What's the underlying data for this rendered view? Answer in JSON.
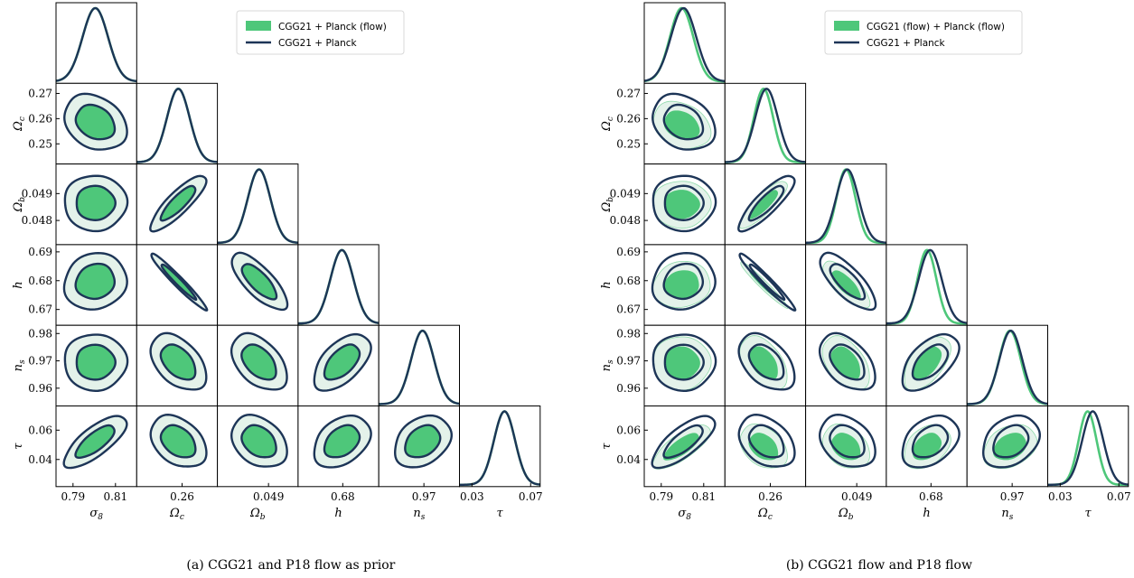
{
  "colors": {
    "flow": "#4ec77a",
    "flow_light": "#e4f2ea",
    "planck": "#1d3557"
  },
  "params": [
    {
      "label": "σ8",
      "ticks": [
        0.79,
        0.81
      ],
      "tick_labels": [
        "0.79",
        "0.81"
      ],
      "range": [
        0.782,
        0.82
      ],
      "mean": 0.8005,
      "sigma": 0.006
    },
    {
      "label": "Ωc",
      "ticks": [
        0.25,
        0.26,
        0.27
      ],
      "tick_labels": [
        "0.25",
        "0.26",
        "0.27"
      ],
      "xticks": [
        0.26
      ],
      "xtick_labels": [
        "0.26"
      ],
      "range": [
        0.242,
        0.274
      ],
      "mean": 0.2585,
      "sigma": 0.0045
    },
    {
      "label": "Ωb",
      "ticks": [
        0.048,
        0.049
      ],
      "tick_labels": [
        "0.048",
        "0.049"
      ],
      "xticks": [
        0.049
      ],
      "xtick_labels": [
        "0.049"
      ],
      "range": [
        0.0471,
        0.0501
      ],
      "mean": 0.04865,
      "sigma": 0.00042
    },
    {
      "label": "h",
      "ticks": [
        0.67,
        0.68,
        0.69
      ],
      "tick_labels": [
        "0.67",
        "0.68",
        "0.69"
      ],
      "xticks": [
        0.68
      ],
      "xtick_labels": [
        "0.68"
      ],
      "range": [
        0.6645,
        0.6925
      ],
      "mean": 0.6797,
      "sigma": 0.004
    },
    {
      "label": "ns",
      "ticks": [
        0.96,
        0.97,
        0.98
      ],
      "tick_labels": [
        "0.96",
        "0.97",
        "0.98"
      ],
      "xticks": [
        0.97
      ],
      "xtick_labels": [
        "0.97"
      ],
      "range": [
        0.9535,
        0.983
      ],
      "mean": 0.9695,
      "sigma": 0.0042
    },
    {
      "label": "τ",
      "ticks": [
        0.04,
        0.06
      ],
      "tick_labels": [
        "0.04",
        "0.06"
      ],
      "xticks": [
        0.03,
        0.07
      ],
      "xtick_labels": [
        "0.03",
        "0.07"
      ],
      "range": [
        0.0215,
        0.0765
      ],
      "mean": 0.0522,
      "sigma": 0.0072
    }
  ],
  "correlations": [
    [
      0,
      1,
      -0.25
    ],
    [
      0,
      2,
      0.0
    ],
    [
      1,
      2,
      0.85
    ],
    [
      0,
      3,
      0.1
    ],
    [
      1,
      3,
      -0.97
    ],
    [
      2,
      3,
      -0.75
    ],
    [
      0,
      4,
      0.0
    ],
    [
      1,
      4,
      -0.45
    ],
    [
      2,
      4,
      -0.45
    ],
    [
      3,
      4,
      0.55
    ],
    [
      0,
      5,
      0.75
    ],
    [
      1,
      5,
      -0.35
    ],
    [
      2,
      5,
      -0.3
    ],
    [
      3,
      5,
      0.35
    ],
    [
      4,
      5,
      0.3
    ]
  ],
  "panels": [
    {
      "caption": "(a) CGG21 and P18 flow as prior",
      "legend": [
        "CGG21 + Planck (flow)",
        "CGG21 + Planck"
      ],
      "flow_shift": [
        0,
        0,
        0,
        0,
        0,
        0
      ],
      "flow_scale": [
        1,
        1,
        1,
        1,
        1,
        1
      ]
    },
    {
      "caption": "(b) CGG21 flow and P18 flow",
      "legend": [
        "CGG21 (flow) + Planck (flow)",
        "CGG21 + Planck"
      ],
      "flow_shift": [
        -0.0009,
        -0.0012,
        -5e-05,
        -0.0011,
        -0.0003,
        -0.0035
      ],
      "flow_scale": [
        0.92,
        0.85,
        0.85,
        0.82,
        0.95,
        0.85
      ]
    }
  ]
}
